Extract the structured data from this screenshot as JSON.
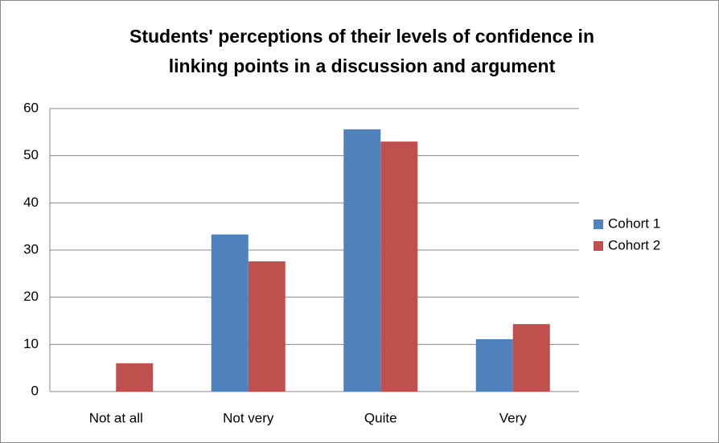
{
  "chart_data": {
    "type": "bar",
    "title": [
      "Students' perceptions of their levels of confidence in",
      "linking points in a discussion and argument"
    ],
    "categories": [
      "Not at all",
      "Not very",
      "Quite",
      "Very"
    ],
    "series": [
      {
        "name": "Cohort 1",
        "color": "#4f81bd",
        "values": [
          0,
          33.3,
          55.6,
          11.1
        ]
      },
      {
        "name": "Cohort 2",
        "color": "#c0504d",
        "values": [
          6.0,
          27.6,
          53.0,
          14.3
        ]
      }
    ],
    "ylim": [
      0,
      60
    ],
    "yticks": [
      0,
      10,
      20,
      30,
      40,
      50,
      60
    ],
    "grid": true,
    "legend": "right"
  }
}
